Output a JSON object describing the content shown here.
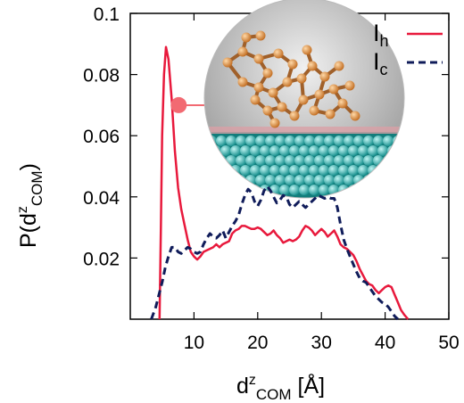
{
  "chart_data": {
    "type": "line",
    "xlabel": {
      "base": "d",
      "sup": "z",
      "sub": "COM",
      "unit": " [Å]"
    },
    "ylabel": {
      "prefix": "P(d",
      "sup": "z",
      "sub": "COM",
      "suffix": ")"
    },
    "xlim": [
      0,
      50
    ],
    "ylim": [
      0,
      0.1
    ],
    "xticks": [
      10,
      20,
      30,
      40,
      50
    ],
    "xtick_labels": [
      "10",
      "20",
      "30",
      "40",
      "50"
    ],
    "yticks": [
      0.02,
      0.04,
      0.06,
      0.08,
      0.1
    ],
    "ytick_labels": [
      "0.02",
      "0.04",
      "0.06",
      "0.08",
      "0.1"
    ],
    "grid": false,
    "legend_position": "top-right",
    "series": [
      {
        "name": "Ih",
        "legend_base": "I",
        "legend_sub": "h",
        "color": "#e8193c",
        "style": "solid",
        "points": [
          [
            4.6,
            0.0
          ],
          [
            4.8,
            0.03
          ],
          [
            5.0,
            0.06
          ],
          [
            5.3,
            0.08
          ],
          [
            5.6,
            0.089
          ],
          [
            6.0,
            0.085
          ],
          [
            6.5,
            0.072
          ],
          [
            7.0,
            0.055
          ],
          [
            7.5,
            0.043
          ],
          [
            8.0,
            0.036
          ],
          [
            8.5,
            0.031
          ],
          [
            9.0,
            0.026
          ],
          [
            9.5,
            0.022
          ],
          [
            10.0,
            0.0205
          ],
          [
            10.5,
            0.0195
          ],
          [
            11.0,
            0.0205
          ],
          [
            11.5,
            0.022
          ],
          [
            12.0,
            0.0225
          ],
          [
            13.0,
            0.0235
          ],
          [
            13.5,
            0.0245
          ],
          [
            14.0,
            0.0235
          ],
          [
            14.5,
            0.0245
          ],
          [
            15.0,
            0.025
          ],
          [
            15.5,
            0.0255
          ],
          [
            16.0,
            0.028
          ],
          [
            16.5,
            0.029
          ],
          [
            17.0,
            0.0295
          ],
          [
            17.5,
            0.0305
          ],
          [
            18.0,
            0.0305
          ],
          [
            18.5,
            0.03
          ],
          [
            19.0,
            0.0295
          ],
          [
            19.5,
            0.0295
          ],
          [
            20.0,
            0.03
          ],
          [
            20.5,
            0.0295
          ],
          [
            21.0,
            0.0285
          ],
          [
            21.5,
            0.0275
          ],
          [
            22.0,
            0.028
          ],
          [
            22.5,
            0.029
          ],
          [
            23.0,
            0.0275
          ],
          [
            23.5,
            0.0265
          ],
          [
            24.0,
            0.025
          ],
          [
            24.5,
            0.0255
          ],
          [
            25.0,
            0.026
          ],
          [
            25.5,
            0.0255
          ],
          [
            26.0,
            0.026
          ],
          [
            26.5,
            0.027
          ],
          [
            27.0,
            0.029
          ],
          [
            27.5,
            0.0305
          ],
          [
            28.0,
            0.03
          ],
          [
            28.5,
            0.029
          ],
          [
            29.0,
            0.0275
          ],
          [
            29.5,
            0.0285
          ],
          [
            30.0,
            0.0295
          ],
          [
            30.5,
            0.0285
          ],
          [
            31.0,
            0.027
          ],
          [
            31.5,
            0.028
          ],
          [
            32.0,
            0.029
          ],
          [
            32.5,
            0.027
          ],
          [
            33.0,
            0.0245
          ],
          [
            33.5,
            0.0235
          ],
          [
            34.0,
            0.023
          ],
          [
            35.0,
            0.021
          ],
          [
            35.5,
            0.019
          ],
          [
            36.0,
            0.0165
          ],
          [
            36.5,
            0.0145
          ],
          [
            37.0,
            0.0125
          ],
          [
            37.5,
            0.0115
          ],
          [
            38.0,
            0.011
          ],
          [
            38.5,
            0.0095
          ],
          [
            39.0,
            0.0085
          ],
          [
            39.5,
            0.0095
          ],
          [
            40.0,
            0.0105
          ],
          [
            40.5,
            0.011
          ],
          [
            41.0,
            0.0105
          ],
          [
            41.5,
            0.008
          ],
          [
            42.0,
            0.0055
          ],
          [
            42.5,
            0.003
          ],
          [
            43.0,
            0.0015
          ],
          [
            43.6,
            0.0
          ]
        ]
      },
      {
        "name": "Ic",
        "legend_base": "I",
        "legend_sub": "c",
        "color": "#101c5a",
        "style": "dashed",
        "points": [
          [
            3.3,
            0.0
          ],
          [
            4.0,
            0.004
          ],
          [
            4.5,
            0.008
          ],
          [
            5.0,
            0.012
          ],
          [
            5.5,
            0.017
          ],
          [
            6.0,
            0.0205
          ],
          [
            6.5,
            0.0235
          ],
          [
            7.0,
            0.0235
          ],
          [
            7.5,
            0.022
          ],
          [
            8.0,
            0.0215
          ],
          [
            8.5,
            0.0225
          ],
          [
            9.0,
            0.0235
          ],
          [
            9.5,
            0.023
          ],
          [
            10.0,
            0.022
          ],
          [
            10.5,
            0.0215
          ],
          [
            11.0,
            0.022
          ],
          [
            11.5,
            0.0245
          ],
          [
            12.0,
            0.0265
          ],
          [
            12.5,
            0.028
          ],
          [
            13.0,
            0.027
          ],
          [
            13.5,
            0.0265
          ],
          [
            14.0,
            0.0275
          ],
          [
            14.5,
            0.029
          ],
          [
            15.0,
            0.0265
          ],
          [
            15.5,
            0.0285
          ],
          [
            16.0,
            0.0305
          ],
          [
            16.5,
            0.032
          ],
          [
            17.0,
            0.034
          ],
          [
            17.5,
            0.0375
          ],
          [
            18.0,
            0.0405
          ],
          [
            18.5,
            0.0425
          ],
          [
            19.0,
            0.0415
          ],
          [
            19.5,
            0.0385
          ],
          [
            20.0,
            0.037
          ],
          [
            20.5,
            0.039
          ],
          [
            21.0,
            0.042
          ],
          [
            21.5,
            0.0435
          ],
          [
            22.0,
            0.042
          ],
          [
            22.5,
            0.04
          ],
          [
            23.0,
            0.038
          ],
          [
            23.5,
            0.039
          ],
          [
            24.0,
            0.0405
          ],
          [
            24.5,
            0.04
          ],
          [
            25.0,
            0.0375
          ],
          [
            25.5,
            0.0365
          ],
          [
            26.0,
            0.0375
          ],
          [
            26.5,
            0.0385
          ],
          [
            27.0,
            0.0375
          ],
          [
            27.5,
            0.0365
          ],
          [
            28.0,
            0.0375
          ],
          [
            28.5,
            0.0385
          ],
          [
            29.0,
            0.0395
          ],
          [
            29.5,
            0.0405
          ],
          [
            30.0,
            0.04
          ],
          [
            30.5,
            0.0395
          ],
          [
            31.0,
            0.04
          ],
          [
            31.5,
            0.0395
          ],
          [
            32.0,
            0.0395
          ],
          [
            32.5,
            0.0365
          ],
          [
            33.0,
            0.031
          ],
          [
            33.5,
            0.026
          ],
          [
            34.0,
            0.023
          ],
          [
            34.5,
            0.0205
          ],
          [
            35.0,
            0.018
          ],
          [
            35.5,
            0.0155
          ],
          [
            36.0,
            0.0135
          ],
          [
            36.5,
            0.0125
          ],
          [
            37.0,
            0.012
          ],
          [
            37.5,
            0.0105
          ],
          [
            38.0,
            0.009
          ],
          [
            38.5,
            0.0075
          ],
          [
            39.0,
            0.0065
          ],
          [
            39.5,
            0.0055
          ],
          [
            40.0,
            0.005
          ],
          [
            40.5,
            0.004
          ],
          [
            41.0,
            0.0025
          ],
          [
            41.5,
            0.001
          ],
          [
            42.0,
            0.0
          ]
        ]
      }
    ],
    "inset": {
      "description_icon": "molecule-on-surface-inset",
      "marker": {
        "x": 7.6,
        "y": 0.07
      },
      "marker_color": "#f26a72",
      "circle_color": "#c8c8c8",
      "surface_color": "#1fb3b0",
      "molecule_color": "#d98a3a"
    }
  }
}
